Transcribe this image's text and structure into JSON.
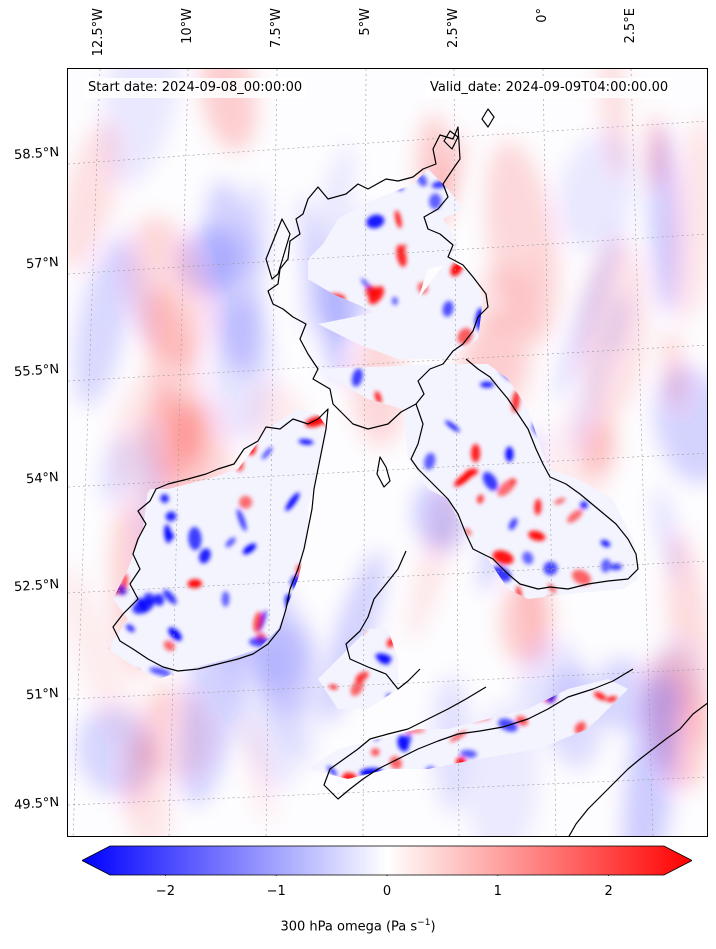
{
  "map": {
    "info": {
      "start_date": "Start date: 2024-09-08_00:00:00",
      "valid_date": "Valid_date: 2024-09-09T04:00:00.00"
    },
    "lat_labels": [
      "58.5°N",
      "57°N",
      "55.5°N",
      "54°N",
      "52.5°N",
      "51°N",
      "49.5°N"
    ],
    "lon_labels": [
      "12.5°W",
      "10°W",
      "7.5°W",
      "5°W",
      "2.5°W",
      "0°",
      "2.5°E"
    ],
    "field": "300 hPa omega",
    "colormap": {
      "negative": "#0000ff",
      "zero": "#ffffff",
      "positive": "#ff0000"
    }
  },
  "colorbar": {
    "ticks": [
      "−2",
      "−1",
      "0",
      "1",
      "2"
    ],
    "tick_values": [
      -2,
      -1,
      0,
      1,
      2
    ],
    "range": [
      -2.5,
      2.5
    ],
    "label": "300 hPa omega (Pa s",
    "label_sup": "−1",
    "label_end": ")"
  }
}
